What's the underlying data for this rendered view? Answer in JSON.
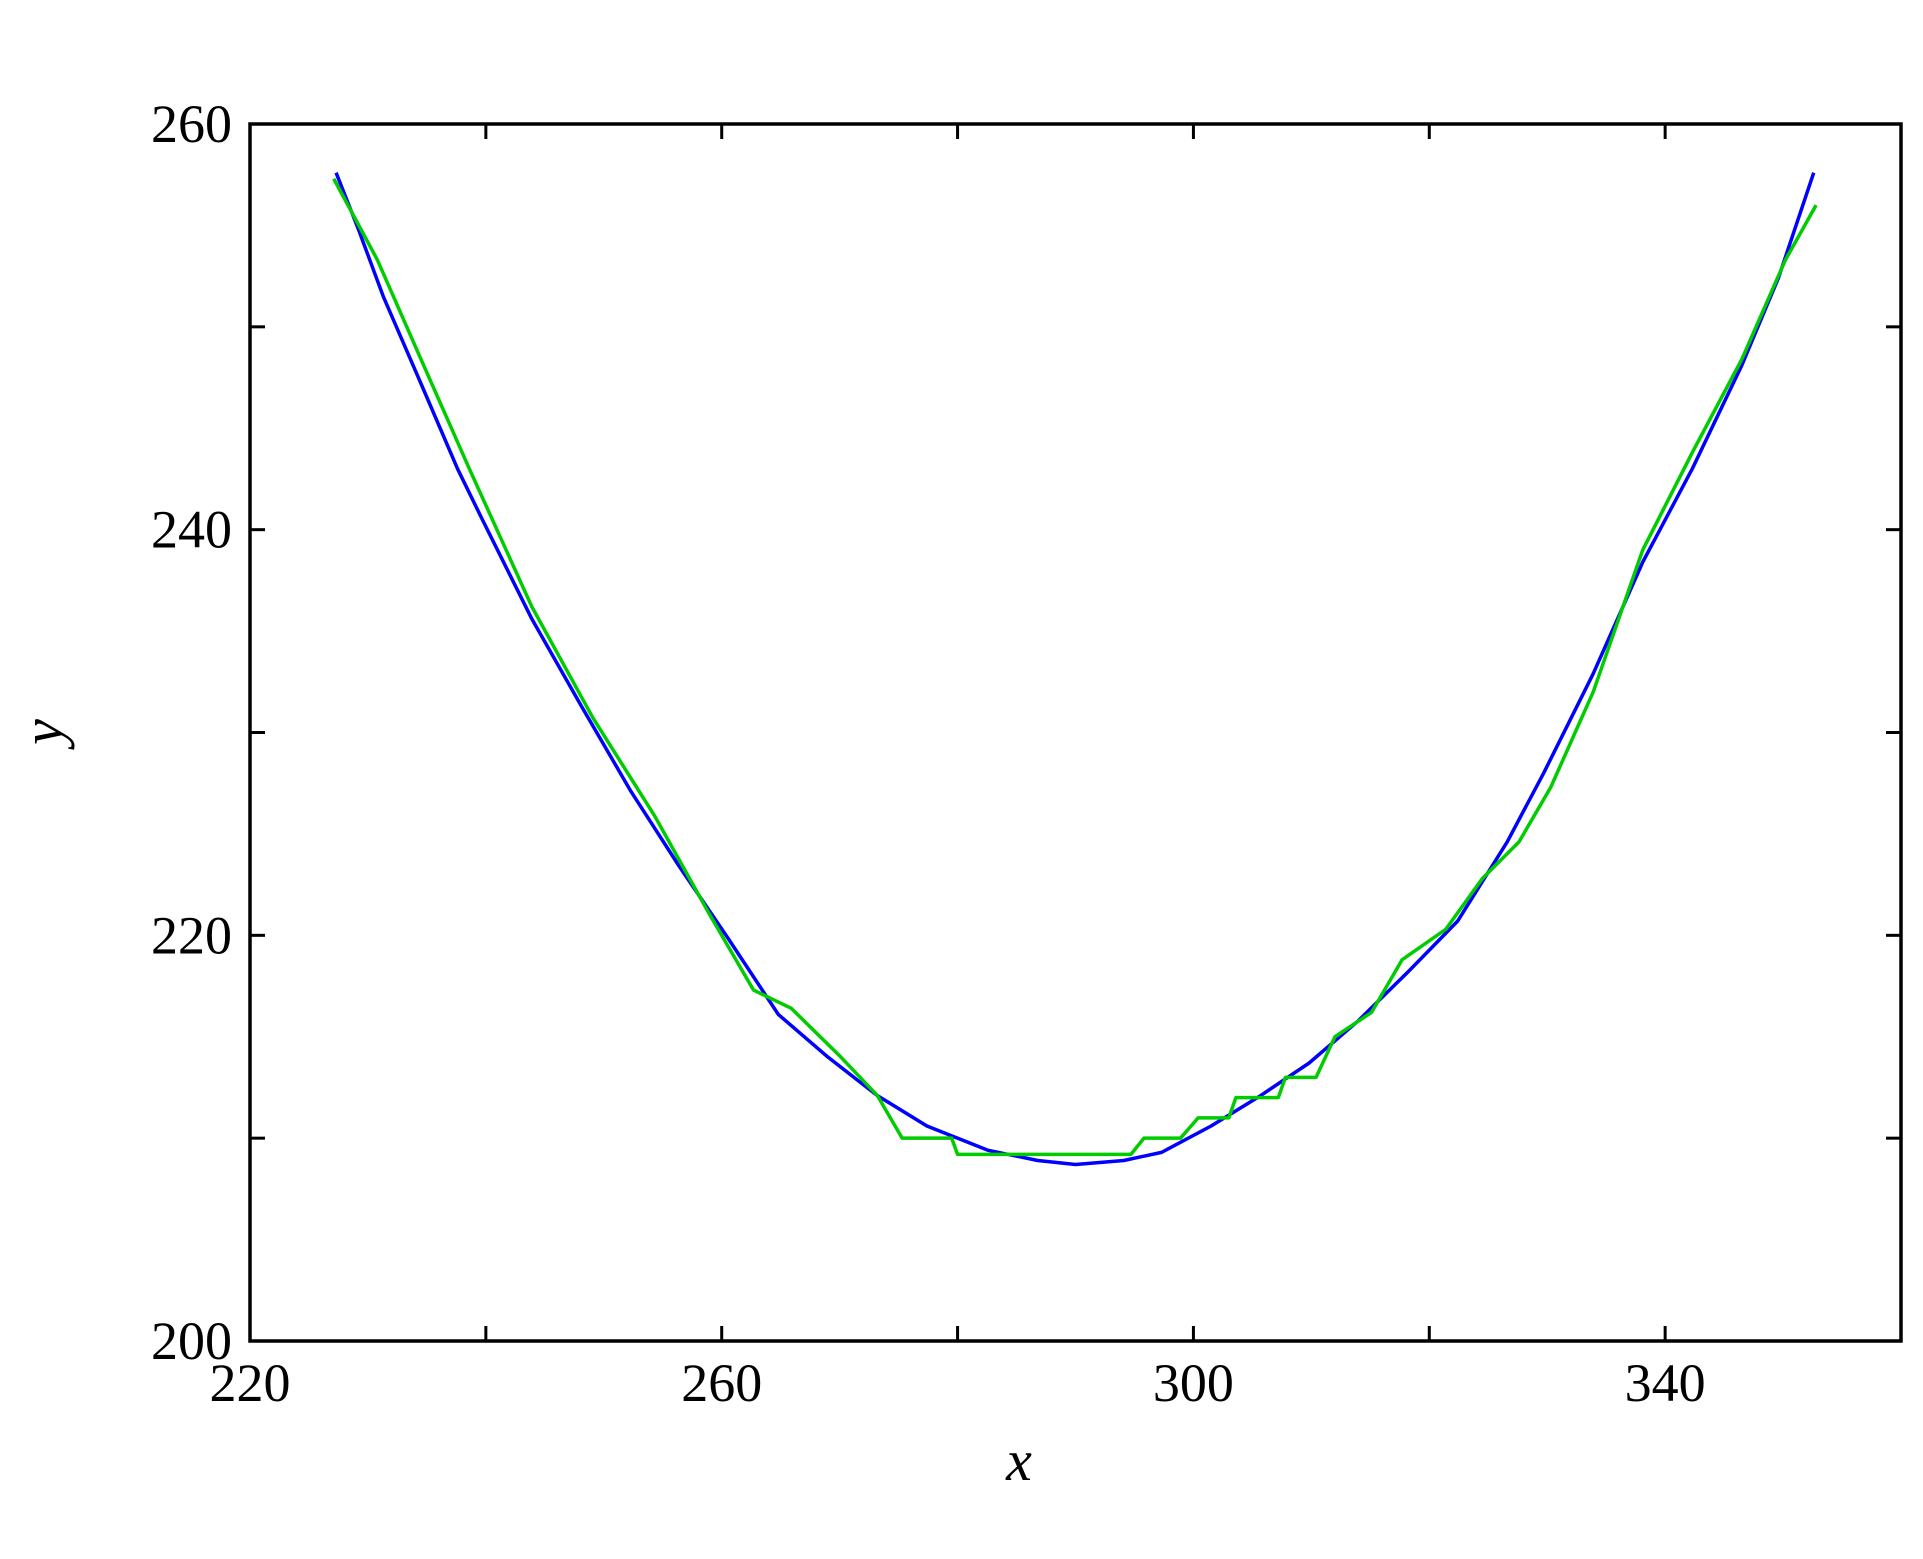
{
  "chart_data": {
    "type": "line",
    "x_label": "x",
    "y_label": "y",
    "xlim": [
      220,
      360
    ],
    "ylim": [
      200,
      260
    ],
    "xticks": [
      220,
      260,
      300,
      340
    ],
    "xticks_minor": [
      240,
      280,
      320
    ],
    "yticks": [
      200,
      220,
      240,
      260
    ],
    "yticks_minor": [
      210,
      230,
      250
    ],
    "grid": false,
    "series": [
      {
        "color": "#0000ff",
        "x": [
          227.3,
          229.2,
          231.3,
          234.5,
          237.6,
          239.7,
          243.9,
          248.1,
          252.3,
          256.4,
          260.6,
          264.8,
          269,
          273.2,
          277.4,
          282.6,
          286.8,
          290,
          294.1,
          297.3,
          301.5,
          305.7,
          309.8,
          314,
          318.2,
          322.4,
          326.6,
          329.7,
          333.9,
          338.1,
          342.3,
          346.5,
          349.6,
          352.6
        ],
        "values": [
          257.6,
          254.8,
          251.5,
          247.2,
          243,
          240.5,
          235.6,
          231.3,
          227.1,
          223.4,
          219.8,
          216.1,
          214,
          212.1,
          210.6,
          209.4,
          208.9,
          208.7,
          208.9,
          209.3,
          210.6,
          212.1,
          213.7,
          215.8,
          218.2,
          220.7,
          224.6,
          228,
          232.9,
          238.4,
          243,
          248.1,
          252.4,
          257.6
        ]
      },
      {
        "color": "#00cc00",
        "x": [
          227.1,
          230.8,
          234.5,
          238.6,
          243.9,
          249.1,
          254.3,
          259,
          262.7,
          265.9,
          270.1,
          273.2,
          275.3,
          279.5,
          280,
          294.7,
          295.8,
          298.9,
          300.4,
          303,
          303.6,
          307.2,
          307.8,
          310.4,
          312,
          315.1,
          317.7,
          321.4,
          324.5,
          327.6,
          330.3,
          333.9,
          338.1,
          342.3,
          346.5,
          350.2,
          352.8
        ],
        "values": [
          257.3,
          253.3,
          248.4,
          243,
          236.2,
          230.7,
          225.9,
          221,
          217.3,
          216.4,
          214,
          212.1,
          210,
          210,
          209.2,
          209.2,
          210,
          210,
          211,
          211,
          212,
          212,
          213,
          213,
          215,
          216.2,
          218.8,
          220.3,
          222.8,
          224.6,
          227.3,
          232,
          239,
          243.8,
          248.4,
          253.3,
          256
        ]
      }
    ]
  }
}
